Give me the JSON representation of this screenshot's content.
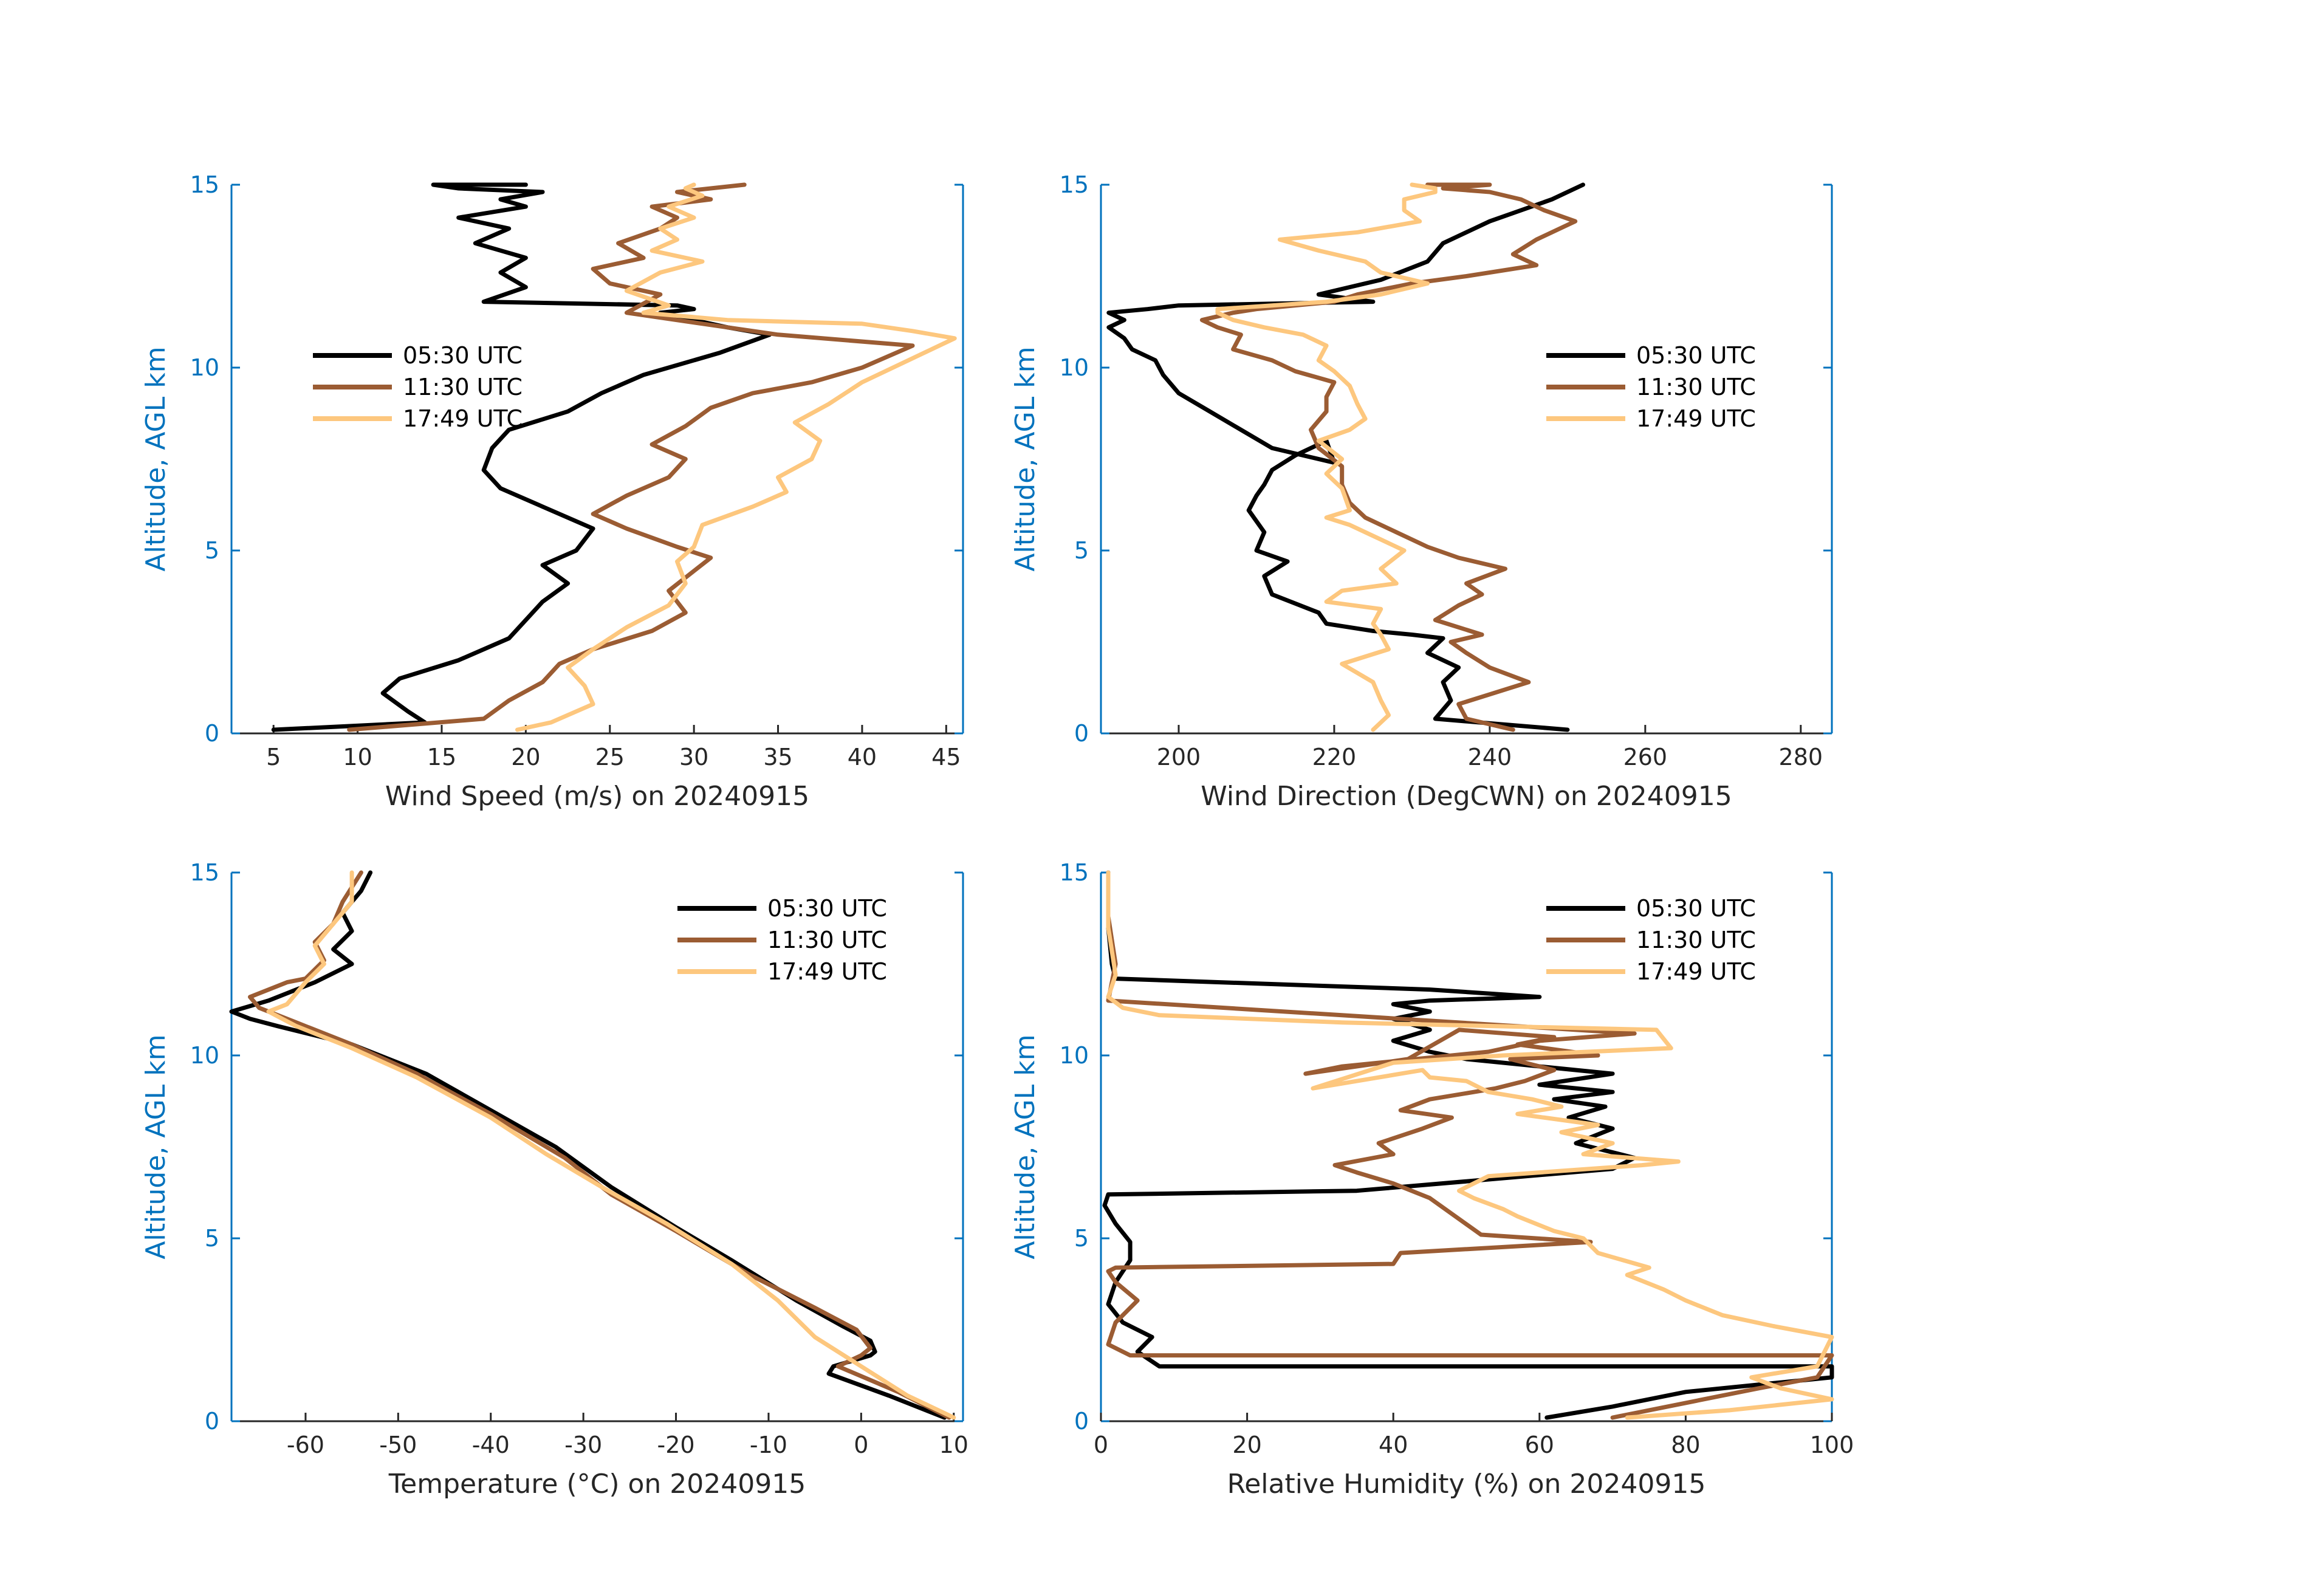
{
  "legend_labels": [
    "05:30 UTC",
    "11:30 UTC",
    "17:49 UTC"
  ],
  "colors": {
    "s0530": "#000000",
    "s1130": "#9B5C33",
    "s1749": "#FDC77E",
    "axis_y": "#0072BD",
    "axis_x": "#262626"
  },
  "chart_data": [
    {
      "type": "line",
      "xlabel": "Wind Speed (m/s) on 20240915",
      "ylabel": "Altitude, AGL km",
      "xlim": [
        2.5,
        46
      ],
      "ylim": [
        0,
        15
      ],
      "xticks": [
        5,
        10,
        15,
        20,
        25,
        30,
        35,
        40,
        45
      ],
      "yticks": [
        0,
        5,
        10,
        15
      ],
      "legend_position": "upper-left",
      "series": [
        {
          "name": "05:30 UTC",
          "x": [
            5,
            14,
            13,
            11.5,
            12.5,
            16,
            19,
            20,
            21,
            22.5,
            21,
            23,
            24,
            21,
            18.5,
            17.5,
            18,
            19,
            22.5,
            24.5,
            27,
            31.5,
            34.5,
            32,
            30,
            28,
            30,
            29,
            17.5,
            20,
            18.5,
            20,
            17,
            19,
            16,
            20,
            18.5,
            21,
            16,
            14.5,
            20
          ],
          "y": [
            0.1,
            0.3,
            0.6,
            1.1,
            1.5,
            2.0,
            2.6,
            3.1,
            3.6,
            4.1,
            4.6,
            5.0,
            5.6,
            6.2,
            6.7,
            7.2,
            7.8,
            8.3,
            8.8,
            9.3,
            9.8,
            10.4,
            10.9,
            11.1,
            11.3,
            11.5,
            11.6,
            11.7,
            11.8,
            12.2,
            12.6,
            13.0,
            13.4,
            13.8,
            14.1,
            14.4,
            14.6,
            14.8,
            14.9,
            15.0,
            15.0
          ]
        },
        {
          "name": "11:30 UTC",
          "x": [
            9.5,
            17.5,
            19,
            21,
            22,
            24,
            27.5,
            29.5,
            28.5,
            31,
            29,
            26,
            24,
            26,
            28.5,
            29.5,
            27.5,
            29.5,
            31,
            33.5,
            37,
            40,
            43,
            35,
            30.5,
            26,
            28,
            25,
            24,
            27,
            25.5,
            28,
            29,
            27.5,
            31,
            29,
            31,
            33
          ],
          "y": [
            0.1,
            0.4,
            0.9,
            1.4,
            1.9,
            2.3,
            2.8,
            3.3,
            3.9,
            4.8,
            5.1,
            5.6,
            6.0,
            6.5,
            7.0,
            7.5,
            7.9,
            8.4,
            8.9,
            9.3,
            9.6,
            10.0,
            10.6,
            10.9,
            11.2,
            11.5,
            12.0,
            12.3,
            12.7,
            13.0,
            13.4,
            13.8,
            14.1,
            14.4,
            14.6,
            14.8,
            14.9,
            15.0
          ]
        },
        {
          "name": "17:49 UTC",
          "x": [
            19.5,
            21.5,
            24,
            23.5,
            22.5,
            24,
            26,
            28.5,
            29.5,
            29,
            30,
            30.5,
            33.5,
            35.5,
            35,
            37,
            37.5,
            36,
            38,
            40,
            45.5,
            43,
            40,
            32,
            27,
            28.5,
            26,
            28,
            30.5,
            27.5,
            29,
            28,
            30,
            28.5,
            30.5,
            29.5,
            30
          ],
          "y": [
            0.1,
            0.3,
            0.8,
            1.3,
            1.8,
            2.3,
            2.9,
            3.5,
            4.1,
            4.7,
            5.1,
            5.7,
            6.2,
            6.6,
            7.0,
            7.5,
            8.0,
            8.5,
            9.0,
            9.6,
            10.8,
            11.0,
            11.2,
            11.3,
            11.5,
            11.7,
            12.1,
            12.6,
            12.9,
            13.2,
            13.5,
            13.8,
            14.1,
            14.4,
            14.7,
            14.9,
            15.0
          ]
        }
      ]
    },
    {
      "type": "line",
      "xlabel": "Wind Direction (DegCWN) on 20240915",
      "ylabel": "Altitude, AGL km",
      "xlim": [
        190,
        284
      ],
      "ylim": [
        0,
        15
      ],
      "xticks": [
        200,
        220,
        240,
        260,
        280
      ],
      "yticks": [
        0,
        5,
        10,
        15
      ],
      "legend_position": "upper-right",
      "series": [
        {
          "name": "05:30 UTC",
          "x": [
            250,
            233,
            235,
            234,
            236,
            232,
            234,
            230,
            225,
            219,
            218,
            212,
            211,
            214,
            210,
            211,
            209,
            210,
            211,
            212,
            215,
            219,
            220,
            212,
            208,
            204,
            200,
            198,
            197,
            194,
            193,
            191,
            193,
            191,
            196,
            200,
            225,
            218,
            226,
            232,
            234,
            240,
            248,
            252
          ],
          "y": [
            0.1,
            0.4,
            0.9,
            1.4,
            1.8,
            2.2,
            2.6,
            2.7,
            2.8,
            3.0,
            3.3,
            3.8,
            4.3,
            4.7,
            5.0,
            5.5,
            6.1,
            6.5,
            6.8,
            7.2,
            7.6,
            8.0,
            7.4,
            7.8,
            8.3,
            8.8,
            9.3,
            9.8,
            10.2,
            10.5,
            10.8,
            11.1,
            11.3,
            11.5,
            11.6,
            11.7,
            11.8,
            12.0,
            12.4,
            12.9,
            13.4,
            14.0,
            14.6,
            15.0
          ]
        },
        {
          "name": "11:30 UTC",
          "x": [
            243,
            237,
            236,
            245,
            240,
            237,
            235,
            239,
            233,
            236,
            239,
            237,
            242,
            236,
            232,
            228,
            224,
            222,
            221,
            221,
            218,
            217,
            219,
            219,
            220,
            215,
            212,
            207,
            208,
            205,
            203,
            207,
            210,
            220,
            223,
            230,
            237,
            246,
            243,
            246,
            251,
            247,
            244,
            240,
            234,
            240,
            236,
            232
          ],
          "y": [
            0.1,
            0.4,
            0.8,
            1.4,
            1.8,
            2.2,
            2.5,
            2.7,
            3.1,
            3.5,
            3.8,
            4.1,
            4.5,
            4.8,
            5.1,
            5.5,
            5.9,
            6.3,
            6.8,
            7.3,
            7.8,
            8.3,
            8.8,
            9.2,
            9.6,
            9.9,
            10.2,
            10.5,
            10.9,
            11.1,
            11.3,
            11.5,
            11.6,
            11.8,
            12.0,
            12.3,
            12.5,
            12.8,
            13.1,
            13.5,
            14.0,
            14.3,
            14.6,
            14.8,
            14.9,
            15.0,
            15.1,
            15.0
          ]
        },
        {
          "name": "17:49 UTC",
          "x": [
            225,
            227,
            226,
            225,
            221,
            227,
            226,
            225,
            226,
            219,
            221,
            228,
            226,
            229,
            225,
            222,
            219,
            222,
            221,
            219,
            221,
            218,
            222,
            224,
            223,
            222,
            220,
            218,
            219,
            216,
            211,
            207,
            205,
            205,
            212,
            219,
            226,
            232,
            226,
            224,
            218,
            213,
            223,
            231,
            229,
            229,
            233,
            233,
            230
          ],
          "y": [
            0.1,
            0.5,
            0.9,
            1.4,
            1.9,
            2.3,
            2.7,
            3.0,
            3.4,
            3.6,
            3.9,
            4.1,
            4.5,
            5.0,
            5.4,
            5.7,
            5.9,
            6.1,
            6.7,
            7.1,
            7.5,
            8.0,
            8.3,
            8.6,
            9.0,
            9.5,
            9.9,
            10.2,
            10.6,
            10.9,
            11.1,
            11.3,
            11.5,
            11.6,
            11.7,
            11.8,
            12.0,
            12.3,
            12.6,
            12.9,
            13.2,
            13.5,
            13.7,
            14.0,
            14.3,
            14.6,
            14.8,
            14.9,
            15.0
          ]
        }
      ]
    },
    {
      "type": "line",
      "xlabel": "Temperature (°C) on 20240915",
      "ylabel": "Altitude, AGL km",
      "xlim": [
        -68,
        11
      ],
      "ylim": [
        0,
        15
      ],
      "xticks": [
        -60,
        -50,
        -40,
        -30,
        -20,
        -10,
        0,
        10
      ],
      "yticks": [
        0,
        5,
        10,
        15
      ],
      "legend_position": "upper-right",
      "series": [
        {
          "name": "05:30 UTC",
          "x": [
            9,
            3,
            -3.5,
            -3,
            1,
            1.5,
            1,
            -2,
            -7,
            -14,
            -20,
            -27,
            -33,
            -40,
            -47,
            -55,
            -63,
            -66,
            -68,
            -64,
            -61,
            -59,
            -55,
            -57,
            -55,
            -56,
            -54,
            -53
          ],
          "y": [
            0.1,
            0.7,
            1.3,
            1.5,
            1.8,
            1.9,
            2.2,
            2.6,
            3.3,
            4.4,
            5.3,
            6.4,
            7.5,
            8.5,
            9.5,
            10.3,
            10.8,
            11.0,
            11.2,
            11.5,
            11.8,
            12.0,
            12.5,
            12.9,
            13.4,
            13.9,
            14.5,
            15.0
          ]
        },
        {
          "name": "11:30 UTC",
          "x": [
            9.5,
            4,
            -2.5,
            0,
            1,
            -0.5,
            -5,
            -12,
            -20,
            -27,
            -32,
            -40,
            -48,
            -55,
            -61,
            -65,
            -66,
            -62,
            -60,
            -58,
            -59,
            -57,
            -56,
            -54
          ],
          "y": [
            0.1,
            0.8,
            1.5,
            1.8,
            2.0,
            2.5,
            3.1,
            4.0,
            5.2,
            6.2,
            7.2,
            8.4,
            9.5,
            10.3,
            10.9,
            11.3,
            11.6,
            12.0,
            12.1,
            12.6,
            13.1,
            13.6,
            14.2,
            15.0
          ]
        },
        {
          "name": "17:49 UTC",
          "x": [
            10,
            5,
            0,
            -5,
            -9,
            -14,
            -21,
            -28,
            -34,
            -40,
            -48,
            -55,
            -61,
            -64,
            -62,
            -61,
            -60,
            -58,
            -59,
            -57,
            -55,
            -55
          ],
          "y": [
            0.1,
            0.7,
            1.5,
            2.3,
            3.3,
            4.3,
            5.4,
            6.4,
            7.3,
            8.3,
            9.4,
            10.2,
            10.8,
            11.2,
            11.4,
            11.7,
            12.0,
            12.5,
            13.0,
            13.6,
            14.2,
            15.0
          ]
        }
      ]
    },
    {
      "type": "line",
      "xlabel": "Relative Humidity (%) on 20240915",
      "ylabel": "Altitude, AGL km",
      "xlim": [
        0,
        100
      ],
      "ylim": [
        0,
        15
      ],
      "xticks": [
        0,
        20,
        40,
        60,
        80,
        100
      ],
      "yticks": [
        0,
        5,
        10,
        15
      ],
      "legend_position": "upper-right",
      "series": [
        {
          "name": "05:30 UTC",
          "x": [
            61,
            70,
            80,
            100,
            100,
            8,
            5,
            7,
            3,
            1,
            2,
            4,
            4,
            2,
            0.5,
            1,
            35,
            70,
            73,
            65,
            70,
            64,
            69,
            62,
            70,
            60,
            70,
            50,
            45,
            40,
            45,
            40,
            45,
            40,
            45,
            60,
            45,
            2,
            1.5,
            1,
            1
          ],
          "y": [
            0.1,
            0.4,
            0.8,
            1.2,
            1.5,
            1.5,
            1.9,
            2.3,
            2.7,
            3.2,
            3.8,
            4.4,
            4.9,
            5.4,
            5.9,
            6.2,
            6.3,
            6.9,
            7.2,
            7.6,
            8.0,
            8.3,
            8.6,
            8.8,
            9.0,
            9.2,
            9.5,
            9.9,
            10.1,
            10.4,
            10.7,
            11.0,
            11.2,
            11.4,
            11.5,
            11.6,
            11.8,
            12.1,
            12.5,
            13.5,
            15.0
          ]
        },
        {
          "name": "11:30 UTC",
          "x": [
            70,
            80,
            90,
            98,
            100,
            4,
            1,
            2,
            5,
            2,
            1,
            2,
            40,
            41,
            67,
            52,
            45,
            40,
            35,
            32,
            40,
            38,
            44,
            48,
            41,
            45,
            54,
            58,
            62,
            56,
            68,
            57,
            62,
            49,
            42,
            28,
            33,
            53,
            60,
            73,
            65,
            1,
            2,
            1,
            1
          ],
          "y": [
            0.1,
            0.5,
            0.9,
            1.2,
            1.8,
            1.8,
            2.1,
            2.7,
            3.3,
            3.8,
            4.1,
            4.2,
            4.3,
            4.6,
            4.9,
            5.1,
            6.1,
            6.5,
            6.8,
            7.0,
            7.3,
            7.6,
            8.0,
            8.3,
            8.5,
            8.8,
            9.1,
            9.3,
            9.6,
            9.9,
            10.0,
            10.3,
            10.5,
            10.7,
            9.9,
            9.5,
            9.7,
            10.1,
            10.4,
            10.6,
            10.7,
            11.5,
            12.5,
            13.8,
            15.0
          ]
        },
        {
          "name": "17:49 UTC",
          "x": [
            72,
            86,
            100,
            93,
            89,
            98,
            100,
            92,
            85,
            80,
            77,
            72,
            75,
            68,
            66,
            62,
            57,
            55,
            51,
            49,
            53,
            60,
            74,
            79,
            66,
            70,
            63,
            68,
            57,
            63,
            59,
            53,
            50,
            45,
            44,
            41,
            29,
            40,
            55,
            78,
            76,
            33,
            8,
            3,
            1,
            2,
            1,
            1
          ],
          "y": [
            0.1,
            0.3,
            0.6,
            0.9,
            1.2,
            1.5,
            2.3,
            2.6,
            2.9,
            3.3,
            3.6,
            4.0,
            4.2,
            4.6,
            5.0,
            5.2,
            5.6,
            5.8,
            6.1,
            6.3,
            6.7,
            6.8,
            7.0,
            7.1,
            7.3,
            7.6,
            7.9,
            8.1,
            8.4,
            8.6,
            8.8,
            9.0,
            9.3,
            9.4,
            9.6,
            9.5,
            9.1,
            9.8,
            10.0,
            10.2,
            10.7,
            10.9,
            11.1,
            11.3,
            11.6,
            12.2,
            13.5,
            15.0
          ]
        }
      ]
    }
  ]
}
